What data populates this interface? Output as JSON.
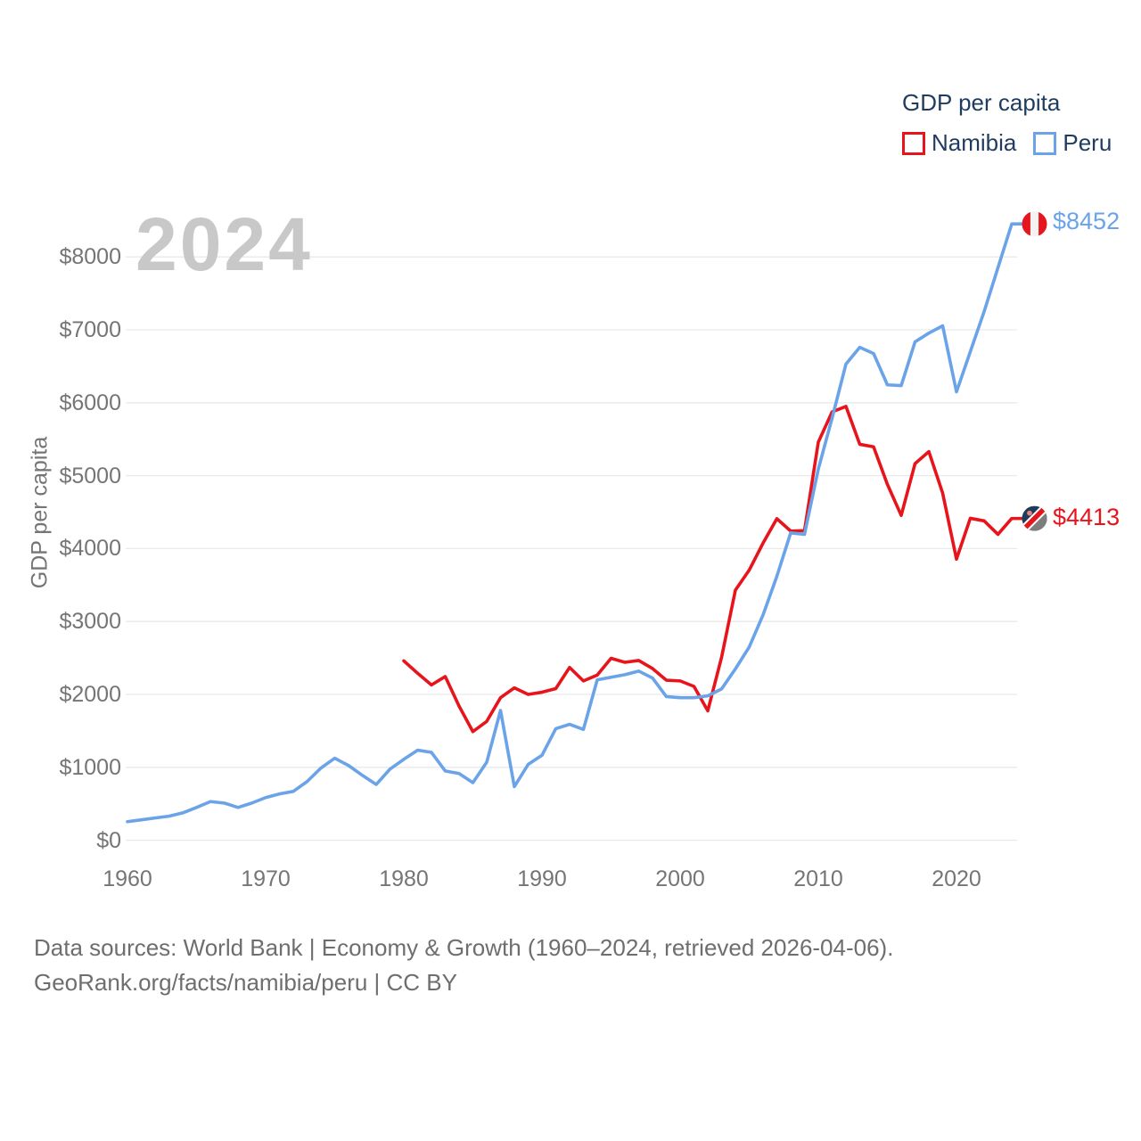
{
  "page": {
    "watermark": "2024",
    "footer_line1": "Data sources: World Bank | Economy & Growth (1960–2024, retrieved 2026-04-06).",
    "footer_line2": "GeoRank.org/facts/namibia/peru | CC BY"
  },
  "legend": {
    "title": "GDP per capita",
    "items": [
      {
        "label": "Namibia",
        "color": "#e8141b"
      },
      {
        "label": "Peru",
        "color": "#6aa3e8"
      }
    ]
  },
  "style": {
    "grid_color": "#e9e9e9",
    "axis_text_color": "#757575",
    "legend_text_color": "#1f3c5f",
    "footer_text_color": "#6e6e6e",
    "watermark_color": "#c8c8c8",
    "namibia_red": "#e8141b",
    "peru_blue": "#6aa3e8"
  },
  "chart_data": {
    "type": "line",
    "title": "GDP per capita",
    "xlabel": "",
    "ylabel": "GDP per capita",
    "xlim": [
      1960,
      2024
    ],
    "ylim": [
      0,
      8452
    ],
    "grid": "horizontal",
    "legend_position": "top-right",
    "x_ticks": [
      1960,
      1970,
      1980,
      1990,
      2000,
      2010,
      2020
    ],
    "y_ticks": [
      {
        "label": "$0",
        "value": 0
      },
      {
        "label": "$1000",
        "value": 1000
      },
      {
        "label": "$2000",
        "value": 2000
      },
      {
        "label": "$3000",
        "value": 3000
      },
      {
        "label": "$4000",
        "value": 4000
      },
      {
        "label": "$5000",
        "value": 5000
      },
      {
        "label": "$6000",
        "value": 6000
      },
      {
        "label": "$7000",
        "value": 7000
      },
      {
        "label": "$8000",
        "value": 8000
      }
    ],
    "series": [
      {
        "name": "Namibia",
        "color": "#e8141b",
        "flag": "namibia",
        "start_year": 1980,
        "end_year": 2024,
        "end_value": 4413,
        "end_label": "$4413",
        "values": [
          2460,
          2290,
          2130,
          2245,
          1840,
          1490,
          1630,
          1955,
          2090,
          2000,
          2030,
          2080,
          2370,
          2185,
          2265,
          2495,
          2440,
          2465,
          2355,
          2195,
          2185,
          2110,
          1775,
          2510,
          3430,
          3705,
          4075,
          4410,
          4240,
          4245,
          5460,
          5875,
          5950,
          5430,
          5395,
          4880,
          4455,
          5165,
          5330,
          4760,
          3855,
          4415,
          4380,
          4195,
          4413
        ]
      },
      {
        "name": "Peru",
        "color": "#6aa3e8",
        "flag": "peru",
        "start_year": 1960,
        "end_year": 2024,
        "end_value": 8452,
        "end_label": "$8452",
        "values": [
          255,
          280,
          305,
          330,
          375,
          450,
          530,
          510,
          450,
          510,
          585,
          635,
          670,
          805,
          990,
          1125,
          1025,
          890,
          765,
          975,
          1110,
          1235,
          1205,
          950,
          915,
          790,
          1070,
          1780,
          735,
          1040,
          1165,
          1530,
          1590,
          1520,
          2200,
          2235,
          2270,
          2320,
          2225,
          1970,
          1955,
          1955,
          1980,
          2075,
          2350,
          2650,
          3090,
          3620,
          4215,
          4195,
          5090,
          5790,
          6530,
          6760,
          6675,
          6245,
          6235,
          6835,
          6955,
          7055,
          6150,
          6700,
          7250,
          7850,
          8452
        ]
      }
    ]
  }
}
